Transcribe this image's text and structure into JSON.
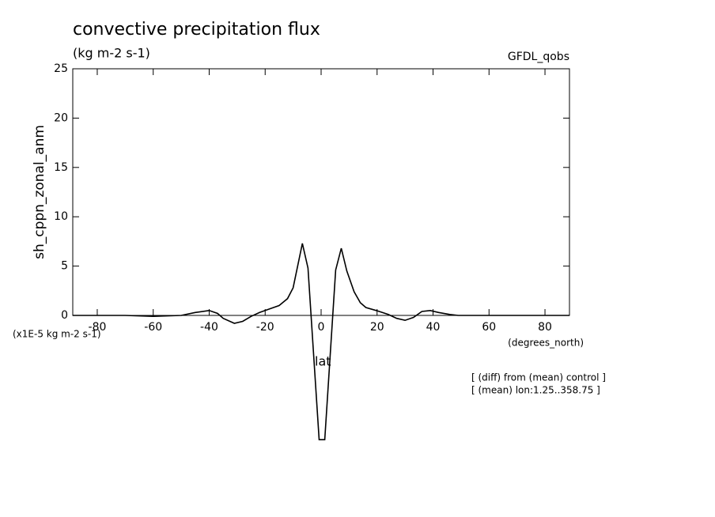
{
  "chart_data": {
    "type": "line",
    "title": "convective precipitation flux",
    "subtitle": "(kg m-2 s-1)",
    "dataset": "GFDL_qobs",
    "y_label": "sh_cppn_zonal_anm",
    "y_units": "(x1E-5 kg m-2 s-1)",
    "x_label": "(degrees_north)",
    "x_name": "lat",
    "notes": [
      "[ (diff) from (mean) control ]",
      "[ (mean) lon:1.25..358.75 ]"
    ],
    "xlim": [
      -88.75,
      88.75
    ],
    "ylim": [
      0,
      25
    ],
    "xticks": [
      -80,
      -60,
      -40,
      -20,
      0,
      20,
      40,
      60,
      80
    ],
    "yticks": [
      0,
      5,
      10,
      15,
      20,
      25
    ],
    "series": [
      {
        "color": "#000000",
        "x": [
          -88.75,
          -80,
          -70,
          -60,
          -50,
          -45,
          -40,
          -37,
          -35,
          -31,
          -28,
          -25,
          -22,
          -18,
          -15,
          -12,
          -10,
          -6.7,
          -4.7,
          -0.7,
          1.3,
          5.2,
          7.2,
          9.2,
          11.8,
          14,
          16,
          19.7,
          24,
          27,
          30,
          33,
          36,
          39,
          42,
          46,
          49,
          55,
          65,
          75,
          88.75
        ],
        "values": [
          0,
          0,
          0,
          -0.1,
          0,
          0.3,
          0.5,
          0.2,
          -0.3,
          -0.8,
          -0.6,
          -0.1,
          0.3,
          0.7,
          1.0,
          1.7,
          2.8,
          7.3,
          4.8,
          -12.6,
          -12.6,
          4.6,
          6.8,
          4.5,
          2.4,
          1.3,
          0.8,
          0.5,
          0.1,
          -0.3,
          -0.5,
          -0.2,
          0.4,
          0.5,
          0.3,
          0.1,
          0,
          0,
          0,
          0,
          0
        ]
      }
    ]
  }
}
